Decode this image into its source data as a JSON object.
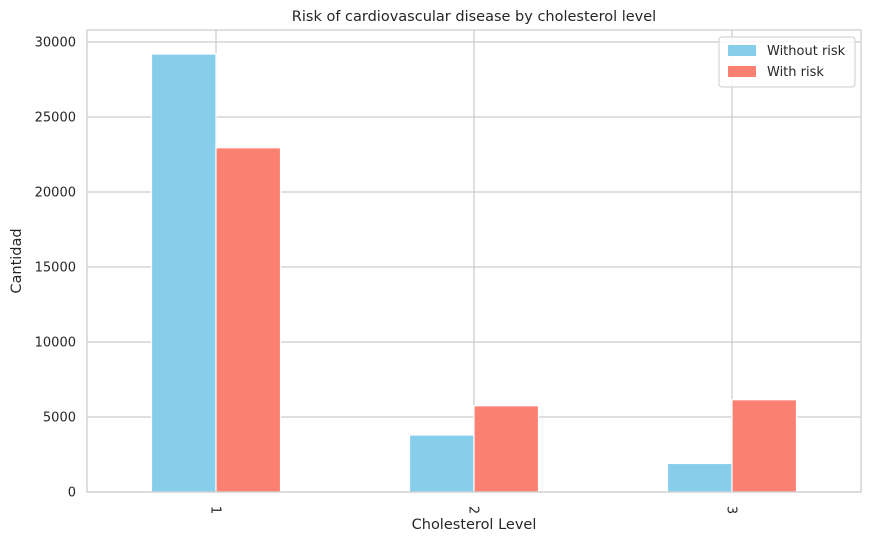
{
  "chart_data": {
    "type": "bar",
    "title": "Risk of cardiovascular disease by cholesterol level",
    "xlabel": "Cholesterol Level",
    "ylabel": "Cantidad",
    "categories": [
      "1",
      "2",
      "3"
    ],
    "series": [
      {
        "name": "Without risk",
        "color": "#87CEEB",
        "values": [
          29200,
          3800,
          1900
        ]
      },
      {
        "name": "With risk",
        "color": "#FA8072",
        "values": [
          22950,
          5750,
          6150
        ]
      }
    ],
    "ylim": [
      0,
      30800
    ],
    "yticks": [
      0,
      5000,
      10000,
      15000,
      20000,
      25000,
      30000
    ],
    "grid": true,
    "legend_position": "top-right"
  }
}
